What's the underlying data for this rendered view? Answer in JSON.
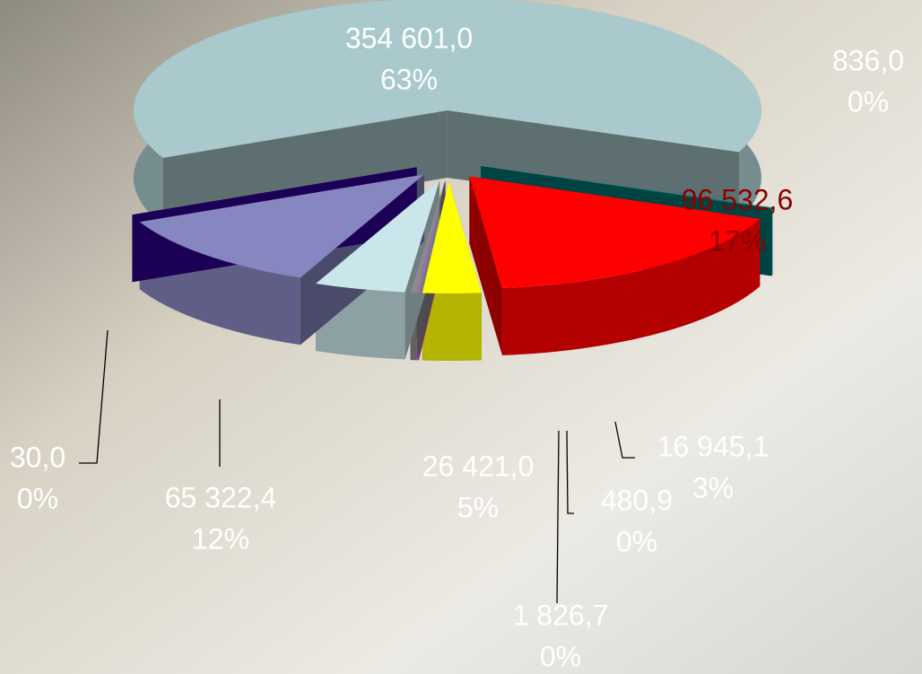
{
  "chart_data": {
    "type": "pie3d",
    "values": [
      354601.0,
      836.0,
      96532.6,
      16945.1,
      480.9,
      1826.7,
      26421.0,
      65322.4,
      30.0
    ],
    "value_labels": [
      "354 601,0",
      "836,0",
      "96 532,6",
      "16 945,1",
      "480,9",
      "1 826,7",
      "26 421,0",
      "65 322,4",
      "30,0"
    ],
    "percents": [
      63,
      0,
      17,
      3,
      0,
      0,
      5,
      12,
      0
    ],
    "percent_labels": [
      "63%",
      "0%",
      "17%",
      "3%",
      "0%",
      "0%",
      "5%",
      "12%",
      "0%"
    ],
    "colors": [
      "#a9c9cc",
      "#007a7a",
      "#ff0000",
      "#ffff00",
      "#cc55cc",
      "#8a8a8a",
      "#c9e6ea",
      "#8686c0",
      "#33009a"
    ]
  }
}
